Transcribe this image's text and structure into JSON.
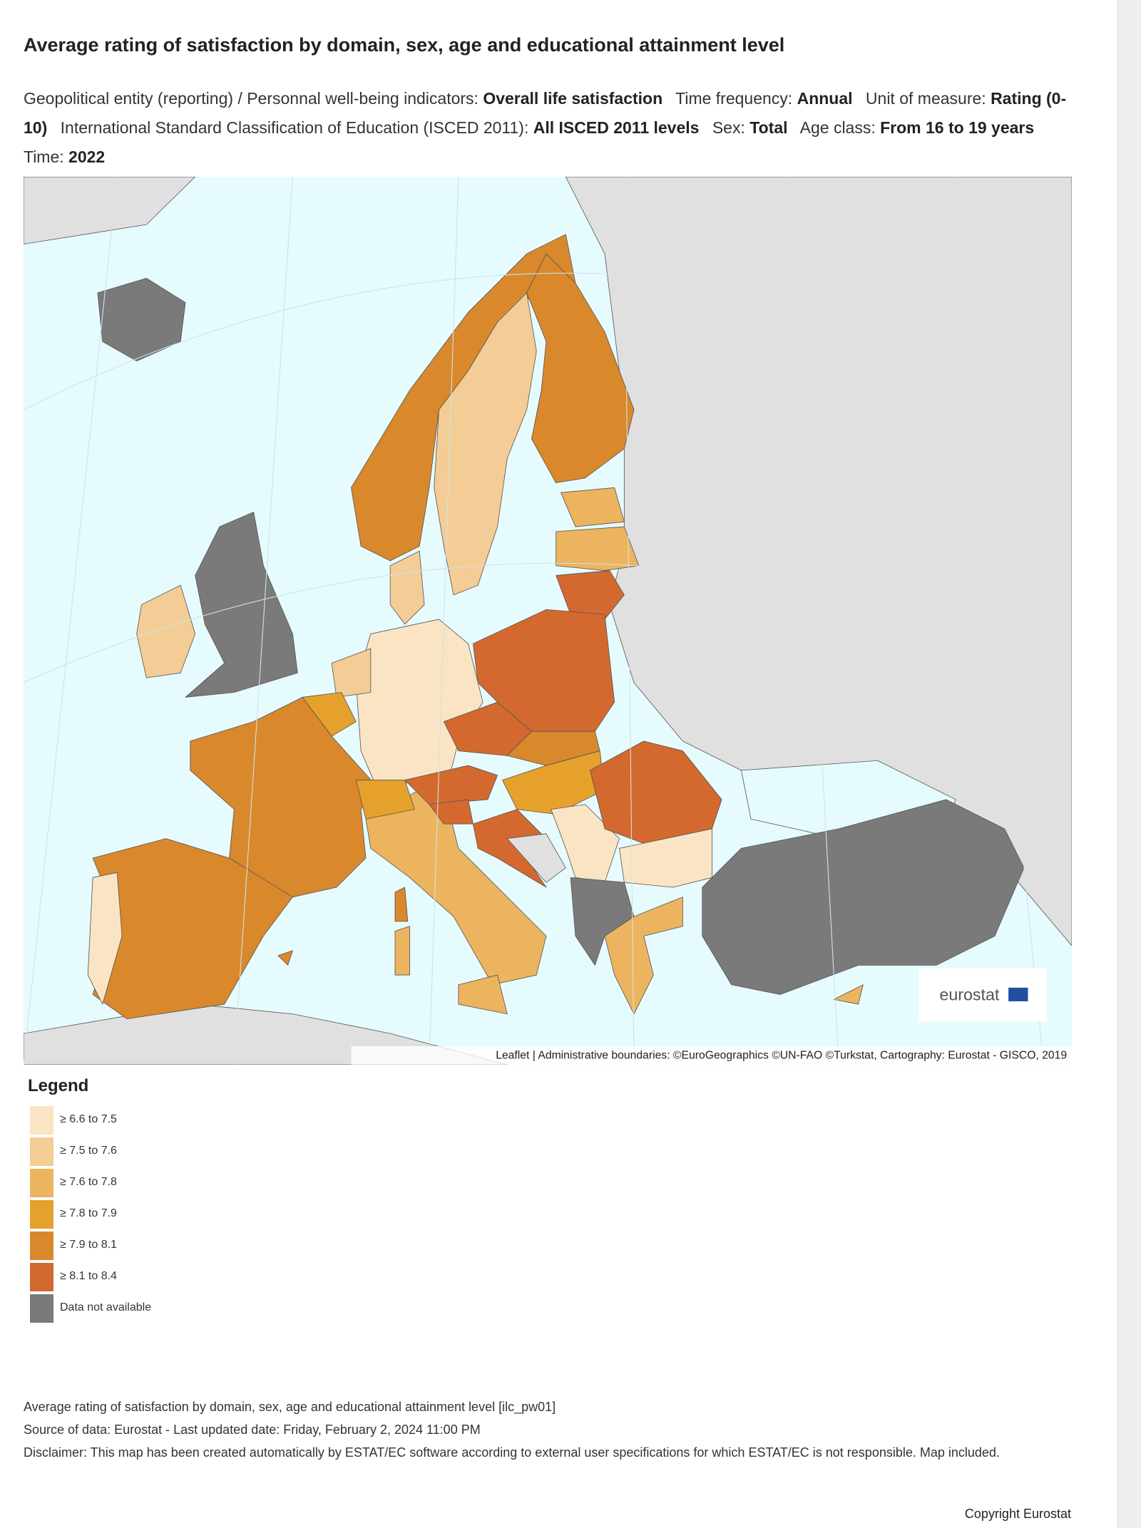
{
  "header": {
    "title": "Average rating of satisfaction by domain, sex, age and educational attainment level",
    "filters": [
      {
        "label": "Geopolitical entity (reporting)  / Personnal well-being indicators:",
        "value": "Overall life satisfaction"
      },
      {
        "label": "Time frequency:",
        "value": "Annual"
      },
      {
        "label": "Unit of measure:",
        "value": "Rating (0-10)"
      },
      {
        "label": "International Standard Classification of Education (ISCED 2011):",
        "value": "All ISCED 2011 levels"
      },
      {
        "label": "Sex:",
        "value": "Total"
      },
      {
        "label": "Age class:",
        "value": "From 16 to 19 years"
      },
      {
        "label": "Time:",
        "value": "2022"
      }
    ]
  },
  "map": {
    "logo": "eurostat",
    "attribution": "Leaflet | Administrative boundaries: ©EuroGeographics ©UN-FAO ©Turkstat, Cartography: Eurostat - GISCO, 2019"
  },
  "legend": {
    "title": "Legend",
    "items": [
      {
        "label": "≥ 6.6 to 7.5",
        "color": "#fbe4c4"
      },
      {
        "label": "≥ 7.5 to 7.6",
        "color": "#f4cc95"
      },
      {
        "label": "≥ 7.6 to 7.8",
        "color": "#ecb45e"
      },
      {
        "label": "≥ 7.8 to 7.9",
        "color": "#e5a12b"
      },
      {
        "label": "≥ 7.9 to 8.1",
        "color": "#d9882c"
      },
      {
        "label": "≥ 8.1 to 8.4",
        "color": "#d3692e"
      },
      {
        "label": "Data not available",
        "color": "#7a7a7a"
      }
    ]
  },
  "footer": {
    "lines": [
      "Average rating of satisfaction by domain, sex, age and educational attainment level [ilc_pw01]",
      "Source of data: Eurostat - Last updated date: Friday, February 2, 2024 11:00 PM",
      "Disclaimer: This map has been created automatically by ESTAT/EC software according to external user specifications for which ESTAT/EC is not responsible. Map included."
    ],
    "copyright": "Copyright Eurostat"
  }
}
